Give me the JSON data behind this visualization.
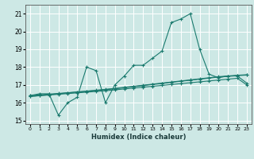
{
  "title": "",
  "xlabel": "Humidex (Indice chaleur)",
  "ylabel": "",
  "background_color": "#cde8e5",
  "grid_color": "#ffffff",
  "line_color": "#1a7a6e",
  "xlim": [
    -0.5,
    23.5
  ],
  "ylim": [
    14.8,
    21.5
  ],
  "xticks": [
    0,
    1,
    2,
    3,
    4,
    5,
    6,
    7,
    8,
    9,
    10,
    11,
    12,
    13,
    14,
    15,
    16,
    17,
    18,
    19,
    20,
    21,
    22,
    23
  ],
  "yticks": [
    15,
    16,
    17,
    18,
    19,
    20,
    21
  ],
  "series": [
    {
      "x": [
        0,
        1,
        2,
        3,
        4,
        5,
        6,
        7,
        8,
        9,
        10,
        11,
        12,
        13,
        14,
        15,
        16,
        17,
        18,
        19,
        20,
        21,
        22,
        23
      ],
      "y": [
        16.4,
        16.5,
        16.5,
        15.3,
        16.0,
        16.3,
        18.0,
        17.8,
        16.0,
        17.0,
        17.5,
        18.1,
        18.1,
        18.5,
        18.9,
        20.5,
        20.7,
        21.0,
        19.0,
        17.6,
        17.4,
        17.5,
        17.5,
        17.1
      ]
    },
    {
      "x": [
        0,
        1,
        2,
        3,
        4,
        5,
        6,
        7,
        8,
        9,
        10,
        11,
        12,
        13,
        14,
        15,
        16,
        17,
        18,
        19,
        20,
        21,
        22,
        23
      ],
      "y": [
        16.35,
        16.39,
        16.43,
        16.47,
        16.51,
        16.55,
        16.59,
        16.63,
        16.67,
        16.72,
        16.77,
        16.82,
        16.87,
        16.92,
        16.97,
        17.02,
        17.07,
        17.12,
        17.17,
        17.22,
        17.27,
        17.32,
        17.37,
        17.0
      ]
    },
    {
      "x": [
        0,
        1,
        2,
        3,
        4,
        5,
        6,
        7,
        8,
        9,
        10,
        11,
        12,
        13,
        14,
        15,
        16,
        17,
        18,
        19,
        20,
        21,
        22,
        23
      ],
      "y": [
        16.4,
        16.44,
        16.48,
        16.52,
        16.56,
        16.6,
        16.64,
        16.68,
        16.73,
        16.78,
        16.84,
        16.9,
        16.96,
        17.02,
        17.08,
        17.14,
        17.2,
        17.26,
        17.32,
        17.38,
        17.44,
        17.48,
        17.52,
        17.55
      ]
    },
    {
      "x": [
        0,
        1,
        2,
        3,
        4,
        5,
        6,
        7,
        8,
        9,
        10,
        11,
        12,
        13,
        14,
        15,
        16,
        17,
        18,
        19,
        20,
        21,
        22,
        23
      ],
      "y": [
        16.35,
        16.4,
        16.45,
        16.5,
        16.55,
        16.6,
        16.65,
        16.7,
        16.75,
        16.8,
        16.86,
        16.92,
        16.98,
        17.04,
        17.1,
        17.16,
        17.22,
        17.28,
        17.34,
        17.4,
        17.46,
        17.5,
        17.54,
        17.57
      ]
    }
  ]
}
